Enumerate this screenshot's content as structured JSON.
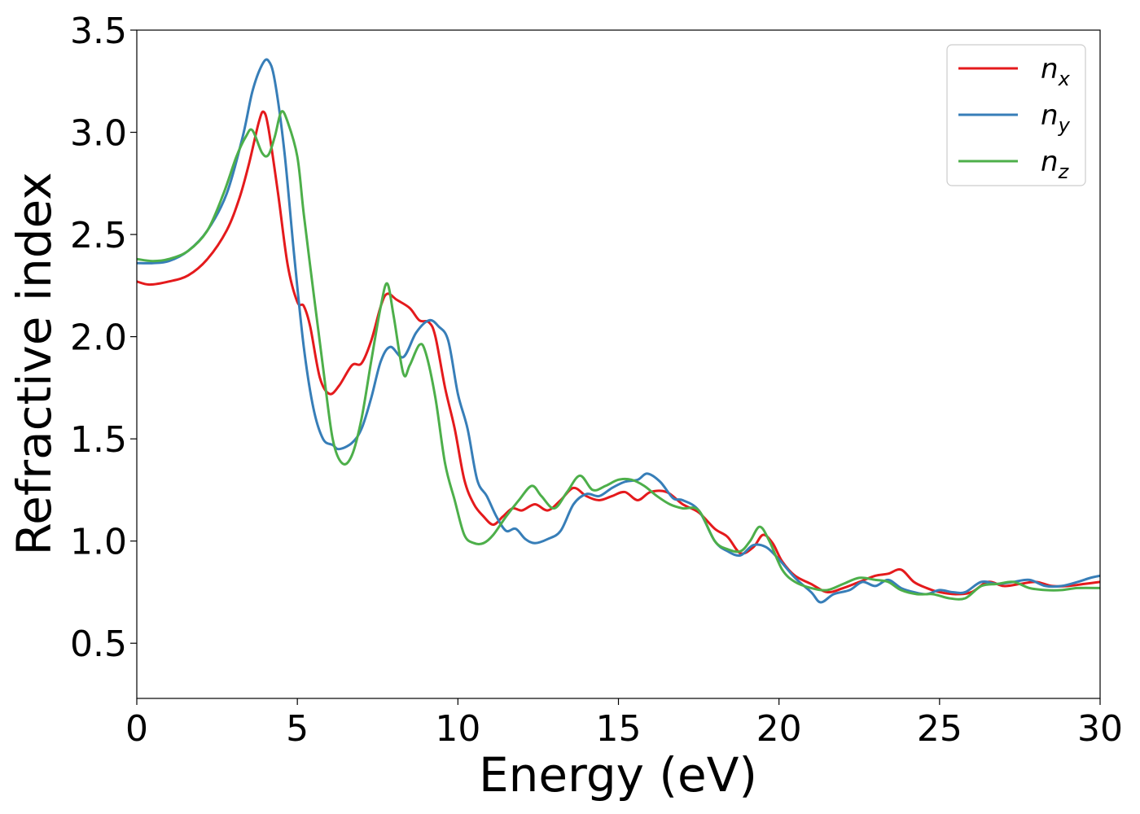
{
  "chart_data": {
    "type": "line",
    "xlabel": "Energy (eV)",
    "ylabel": "Refractive index",
    "xlim": [
      0,
      30
    ],
    "ylim": [
      0.23,
      3.5
    ],
    "xticks": [
      0,
      5,
      10,
      15,
      20,
      25,
      30
    ],
    "yticks": [
      0.5,
      1.0,
      1.5,
      2.0,
      2.5,
      3.0,
      3.5
    ],
    "xtick_labels": [
      "0",
      "5",
      "10",
      "15",
      "20",
      "25",
      "30"
    ],
    "ytick_labels": [
      "0.5",
      "1.0",
      "1.5",
      "2.0",
      "2.5",
      "3.0",
      "3.5"
    ],
    "grid": false,
    "legend_position": "top-right",
    "series": [
      {
        "name": "n_x",
        "base": "n",
        "sub": "x",
        "color": "#e41a1c",
        "points": [
          [
            0,
            2.27
          ],
          [
            0.4,
            2.255
          ],
          [
            1,
            2.27
          ],
          [
            1.6,
            2.3
          ],
          [
            2.2,
            2.38
          ],
          [
            2.8,
            2.52
          ],
          [
            3.2,
            2.68
          ],
          [
            3.5,
            2.85
          ],
          [
            3.8,
            3.05
          ],
          [
            3.95,
            3.1
          ],
          [
            4.1,
            3.02
          ],
          [
            4.4,
            2.7
          ],
          [
            4.7,
            2.35
          ],
          [
            5,
            2.17
          ],
          [
            5.2,
            2.15
          ],
          [
            5.4,
            2.05
          ],
          [
            5.7,
            1.8
          ],
          [
            6.0,
            1.72
          ],
          [
            6.3,
            1.76
          ],
          [
            6.7,
            1.86
          ],
          [
            7.0,
            1.87
          ],
          [
            7.3,
            1.98
          ],
          [
            7.6,
            2.15
          ],
          [
            7.8,
            2.21
          ],
          [
            8.1,
            2.18
          ],
          [
            8.5,
            2.14
          ],
          [
            8.8,
            2.08
          ],
          [
            9.1,
            2.07
          ],
          [
            9.3,
            2.0
          ],
          [
            9.6,
            1.75
          ],
          [
            9.9,
            1.55
          ],
          [
            10.2,
            1.3
          ],
          [
            10.5,
            1.18
          ],
          [
            10.8,
            1.12
          ],
          [
            11.1,
            1.08
          ],
          [
            11.4,
            1.12
          ],
          [
            11.7,
            1.16
          ],
          [
            12.0,
            1.15
          ],
          [
            12.4,
            1.18
          ],
          [
            12.8,
            1.15
          ],
          [
            13.2,
            1.2
          ],
          [
            13.6,
            1.26
          ],
          [
            14.0,
            1.22
          ],
          [
            14.4,
            1.2
          ],
          [
            14.8,
            1.22
          ],
          [
            15.2,
            1.24
          ],
          [
            15.6,
            1.2
          ],
          [
            16.0,
            1.24
          ],
          [
            16.5,
            1.24
          ],
          [
            17.0,
            1.18
          ],
          [
            17.5,
            1.14
          ],
          [
            18.0,
            1.06
          ],
          [
            18.4,
            1.02
          ],
          [
            18.8,
            0.94
          ],
          [
            19.2,
            0.97
          ],
          [
            19.5,
            1.03
          ],
          [
            19.8,
            0.99
          ],
          [
            20.1,
            0.9
          ],
          [
            20.5,
            0.83
          ],
          [
            21.0,
            0.79
          ],
          [
            21.5,
            0.75
          ],
          [
            22.0,
            0.77
          ],
          [
            22.5,
            0.8
          ],
          [
            23.0,
            0.83
          ],
          [
            23.4,
            0.84
          ],
          [
            23.8,
            0.86
          ],
          [
            24.2,
            0.8
          ],
          [
            24.6,
            0.77
          ],
          [
            25.0,
            0.75
          ],
          [
            25.5,
            0.74
          ],
          [
            26.0,
            0.75
          ],
          [
            26.5,
            0.8
          ],
          [
            27.0,
            0.78
          ],
          [
            27.5,
            0.79
          ],
          [
            28.0,
            0.8
          ],
          [
            28.5,
            0.78
          ],
          [
            29.0,
            0.78
          ],
          [
            29.5,
            0.79
          ],
          [
            30,
            0.8
          ]
        ]
      },
      {
        "name": "n_y",
        "base": "n",
        "sub": "y",
        "color": "#377eb8",
        "points": [
          [
            0,
            2.36
          ],
          [
            0.5,
            2.36
          ],
          [
            1,
            2.37
          ],
          [
            1.6,
            2.42
          ],
          [
            2.2,
            2.52
          ],
          [
            2.8,
            2.7
          ],
          [
            3.3,
            2.98
          ],
          [
            3.6,
            3.2
          ],
          [
            3.9,
            3.33
          ],
          [
            4.1,
            3.35
          ],
          [
            4.3,
            3.25
          ],
          [
            4.6,
            2.9
          ],
          [
            4.9,
            2.4
          ],
          [
            5.2,
            1.95
          ],
          [
            5.5,
            1.65
          ],
          [
            5.8,
            1.5
          ],
          [
            6.1,
            1.47
          ],
          [
            6.3,
            1.45
          ],
          [
            6.7,
            1.48
          ],
          [
            7.0,
            1.55
          ],
          [
            7.3,
            1.7
          ],
          [
            7.6,
            1.88
          ],
          [
            7.9,
            1.95
          ],
          [
            8.3,
            1.9
          ],
          [
            8.7,
            2.02
          ],
          [
            9.1,
            2.08
          ],
          [
            9.4,
            2.05
          ],
          [
            9.7,
            1.98
          ],
          [
            10.0,
            1.72
          ],
          [
            10.3,
            1.55
          ],
          [
            10.6,
            1.3
          ],
          [
            10.9,
            1.22
          ],
          [
            11.2,
            1.12
          ],
          [
            11.5,
            1.05
          ],
          [
            11.8,
            1.06
          ],
          [
            12.1,
            1.01
          ],
          [
            12.4,
            0.99
          ],
          [
            12.8,
            1.01
          ],
          [
            13.2,
            1.05
          ],
          [
            13.6,
            1.18
          ],
          [
            14.0,
            1.23
          ],
          [
            14.4,
            1.22
          ],
          [
            14.8,
            1.26
          ],
          [
            15.2,
            1.29
          ],
          [
            15.6,
            1.3
          ],
          [
            15.9,
            1.33
          ],
          [
            16.3,
            1.29
          ],
          [
            16.7,
            1.21
          ],
          [
            17.0,
            1.2
          ],
          [
            17.5,
            1.15
          ],
          [
            18.0,
            1.0
          ],
          [
            18.4,
            0.95
          ],
          [
            18.8,
            0.93
          ],
          [
            19.2,
            0.98
          ],
          [
            19.6,
            0.97
          ],
          [
            20.0,
            0.91
          ],
          [
            20.5,
            0.82
          ],
          [
            21.0,
            0.75
          ],
          [
            21.3,
            0.7
          ],
          [
            21.7,
            0.74
          ],
          [
            22.2,
            0.76
          ],
          [
            22.6,
            0.8
          ],
          [
            23.0,
            0.78
          ],
          [
            23.4,
            0.81
          ],
          [
            23.8,
            0.77
          ],
          [
            24.2,
            0.75
          ],
          [
            24.6,
            0.74
          ],
          [
            25.0,
            0.76
          ],
          [
            25.4,
            0.75
          ],
          [
            25.8,
            0.75
          ],
          [
            26.3,
            0.8
          ],
          [
            26.8,
            0.79
          ],
          [
            27.3,
            0.8
          ],
          [
            27.8,
            0.81
          ],
          [
            28.3,
            0.78
          ],
          [
            28.8,
            0.78
          ],
          [
            29.3,
            0.8
          ],
          [
            29.7,
            0.82
          ],
          [
            30,
            0.83
          ]
        ]
      },
      {
        "name": "n_z",
        "base": "n",
        "sub": "z",
        "color": "#4daf4a",
        "points": [
          [
            0,
            2.38
          ],
          [
            0.5,
            2.37
          ],
          [
            1,
            2.38
          ],
          [
            1.6,
            2.42
          ],
          [
            2.2,
            2.52
          ],
          [
            2.7,
            2.7
          ],
          [
            3.1,
            2.88
          ],
          [
            3.4,
            2.98
          ],
          [
            3.6,
            3.01
          ],
          [
            3.9,
            2.9
          ],
          [
            4.1,
            2.89
          ],
          [
            4.3,
            2.98
          ],
          [
            4.5,
            3.1
          ],
          [
            4.7,
            3.05
          ],
          [
            5.0,
            2.88
          ],
          [
            5.2,
            2.6
          ],
          [
            5.5,
            2.22
          ],
          [
            5.8,
            1.85
          ],
          [
            6.1,
            1.5
          ],
          [
            6.4,
            1.38
          ],
          [
            6.7,
            1.42
          ],
          [
            7.0,
            1.6
          ],
          [
            7.3,
            1.88
          ],
          [
            7.6,
            2.15
          ],
          [
            7.8,
            2.26
          ],
          [
            8.0,
            2.1
          ],
          [
            8.3,
            1.82
          ],
          [
            8.5,
            1.86
          ],
          [
            8.8,
            1.96
          ],
          [
            9.0,
            1.92
          ],
          [
            9.3,
            1.7
          ],
          [
            9.6,
            1.38
          ],
          [
            9.9,
            1.2
          ],
          [
            10.2,
            1.03
          ],
          [
            10.5,
            0.99
          ],
          [
            10.8,
            0.99
          ],
          [
            11.1,
            1.03
          ],
          [
            11.5,
            1.12
          ],
          [
            11.9,
            1.2
          ],
          [
            12.3,
            1.27
          ],
          [
            12.6,
            1.22
          ],
          [
            13.0,
            1.16
          ],
          [
            13.4,
            1.24
          ],
          [
            13.8,
            1.32
          ],
          [
            14.2,
            1.25
          ],
          [
            14.6,
            1.27
          ],
          [
            15.0,
            1.3
          ],
          [
            15.4,
            1.3
          ],
          [
            15.8,
            1.27
          ],
          [
            16.2,
            1.22
          ],
          [
            16.6,
            1.18
          ],
          [
            17.0,
            1.16
          ],
          [
            17.5,
            1.15
          ],
          [
            18.0,
            1.0
          ],
          [
            18.4,
            0.96
          ],
          [
            18.8,
            0.95
          ],
          [
            19.1,
            1.0
          ],
          [
            19.4,
            1.07
          ],
          [
            19.7,
            1.0
          ],
          [
            20.1,
            0.86
          ],
          [
            20.5,
            0.8
          ],
          [
            21.0,
            0.77
          ],
          [
            21.5,
            0.76
          ],
          [
            22.0,
            0.79
          ],
          [
            22.5,
            0.82
          ],
          [
            23.0,
            0.81
          ],
          [
            23.4,
            0.8
          ],
          [
            23.8,
            0.76
          ],
          [
            24.3,
            0.74
          ],
          [
            24.8,
            0.74
          ],
          [
            25.3,
            0.72
          ],
          [
            25.8,
            0.72
          ],
          [
            26.3,
            0.78
          ],
          [
            26.8,
            0.79
          ],
          [
            27.3,
            0.8
          ],
          [
            27.8,
            0.77
          ],
          [
            28.3,
            0.76
          ],
          [
            28.8,
            0.76
          ],
          [
            29.3,
            0.77
          ],
          [
            30,
            0.77
          ]
        ]
      }
    ]
  }
}
